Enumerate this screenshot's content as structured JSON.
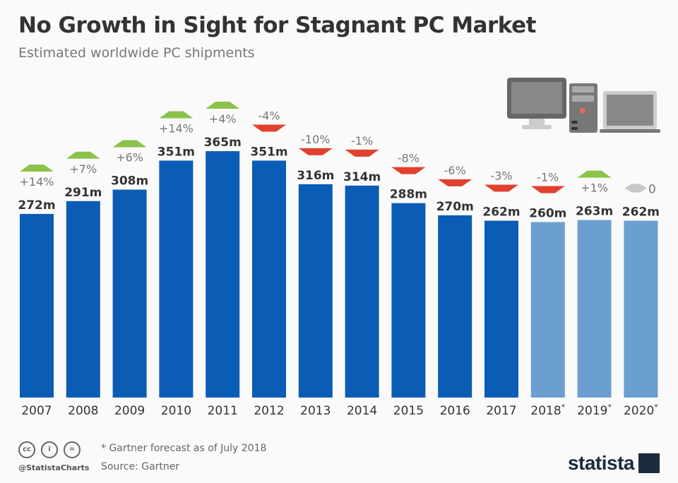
{
  "title": "No Growth in Sight for Stagnant PC Market",
  "subtitle": "Estimated worldwide PC shipments",
  "footnote": "* Gartner forecast as of July 2018",
  "source": "Source: Gartner",
  "handle": "@StatistaCharts",
  "brand": "statista",
  "colors": {
    "actual": "#0b5cb5",
    "forecast": "#6b9fd1",
    "up": "#8bc34a",
    "down": "#e2412e",
    "flat": "#c8c8c8"
  },
  "chart_data": {
    "type": "bar",
    "categories": [
      "2007",
      "2008",
      "2009",
      "2010",
      "2011",
      "2012",
      "2013",
      "2014",
      "2015",
      "2016",
      "2017",
      "2018*",
      "2019*",
      "2020*"
    ],
    "values": [
      272,
      291,
      308,
      351,
      365,
      351,
      316,
      314,
      288,
      270,
      262,
      260,
      263,
      262
    ],
    "value_labels": [
      "272m",
      "291m",
      "308m",
      "351m",
      "365m",
      "351m",
      "316m",
      "314m",
      "288m",
      "270m",
      "262m",
      "260m",
      "263m",
      "262m"
    ],
    "change_labels": [
      "+14%",
      "+7%",
      "+6%",
      "+14%",
      "+4%",
      "-4%",
      "-10%",
      "-1%",
      "-8%",
      "-6%",
      "-3%",
      "-1%",
      "+1%",
      "0"
    ],
    "forecast": [
      false,
      false,
      false,
      false,
      false,
      false,
      false,
      false,
      false,
      false,
      false,
      true,
      true,
      true
    ],
    "unit": "m",
    "ylim": [
      0,
      400
    ],
    "grid": false
  }
}
